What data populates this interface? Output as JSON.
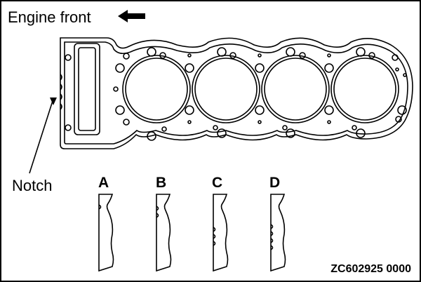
{
  "title": "Engine front",
  "notch_label": "Notch",
  "variants": [
    "A",
    "B",
    "C",
    "D"
  ],
  "figure_code": "ZC602925 0000",
  "colors": {
    "line": "#000000",
    "background": "#ffffff"
  },
  "icons": {
    "direction": "left-arrow-icon"
  }
}
